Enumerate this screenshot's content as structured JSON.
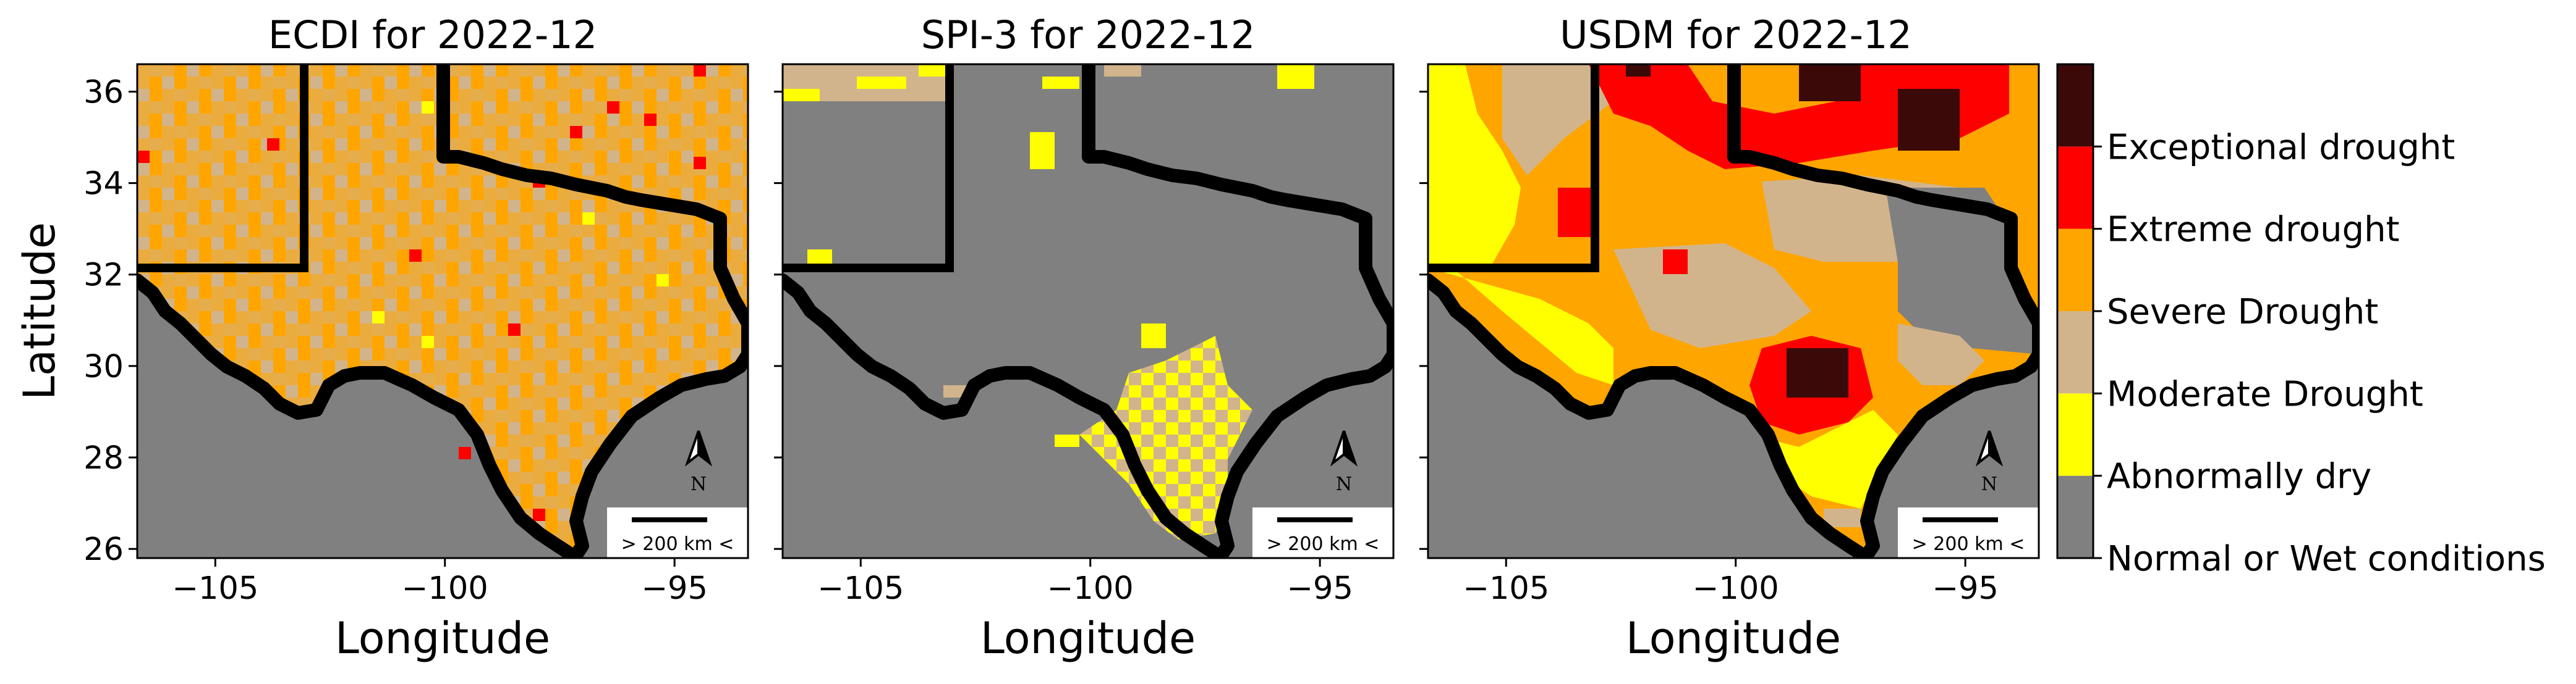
{
  "figure": {
    "panels": [
      {
        "id": "ecdi",
        "title": "ECDI for 2022-12",
        "xlabel": "Longitude"
      },
      {
        "id": "spi3",
        "title": "SPI-3 for 2022-12",
        "xlabel": "Longitude"
      },
      {
        "id": "usdm",
        "title": "USDM for 2022-12",
        "xlabel": "Longitude"
      }
    ],
    "ylabel": "Latitude",
    "scale_bar_label": "> 200 km <",
    "north_arrow_label": "N"
  },
  "chart_data": {
    "type": "heatmap",
    "x_ticks": [
      "−105",
      "−100",
      "−95"
    ],
    "y_ticks": [
      "36",
      "34",
      "32",
      "30",
      "28",
      "26"
    ],
    "xlim": [
      -106.7,
      -93.4
    ],
    "ylim": [
      25.8,
      36.6
    ],
    "legend": {
      "placement": "right",
      "categories": [
        {
          "label": "Normal or Wet conditions",
          "color": "#808080"
        },
        {
          "label": "Abnormally dry",
          "color": "#ffff00"
        },
        {
          "label": "Moderate Drought",
          "color": "#d2b48c"
        },
        {
          "label": "Severe Drought",
          "color": "#ffa500"
        },
        {
          "label": "Extreme drought",
          "color": "#ff0000"
        },
        {
          "label": "Exceptional drought",
          "color": "#3b0a08"
        }
      ]
    }
  }
}
